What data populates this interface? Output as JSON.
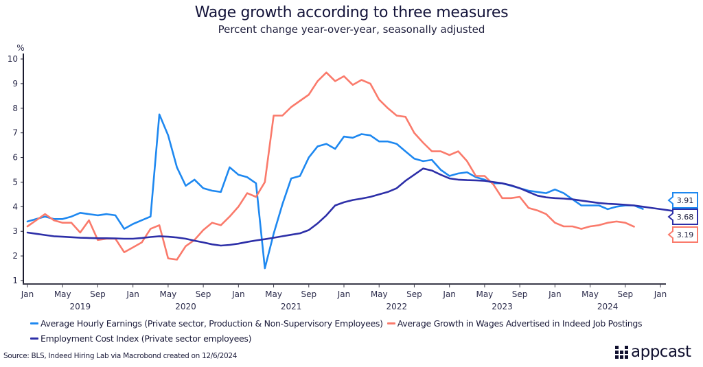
{
  "chart_data": {
    "type": "line",
    "title": "Wage growth according to three measures",
    "subtitle": "Percent change year-over-year, seasonally adjusted",
    "ylabel": "%",
    "xlabel": "",
    "ylim": [
      1,
      10
    ],
    "yticks": [
      1,
      2,
      3,
      4,
      5,
      6,
      7,
      8,
      9,
      10
    ],
    "x_start": "2019-01",
    "x_end": "2025-01",
    "xtick_months": [
      "Jan",
      "May",
      "Sep",
      "Jan",
      "May",
      "Sep",
      "Jan",
      "May",
      "Sep",
      "Jan",
      "May",
      "Sep",
      "Jan",
      "May",
      "Sep",
      "Jan",
      "May",
      "Sep",
      "Jan"
    ],
    "year_labels": [
      "2019",
      "2020",
      "2021",
      "2022",
      "2023",
      "2024"
    ],
    "grid": false,
    "legend_position": "bottom",
    "series": [
      {
        "name": "Average Hourly Earnings (Private sector, Production & Non-Supervisory Employees)",
        "color": "#1e88f0",
        "start": "2019-01",
        "values": [
          3.4,
          3.5,
          3.6,
          3.5,
          3.5,
          3.6,
          3.75,
          3.7,
          3.65,
          3.7,
          3.65,
          3.1,
          3.3,
          3.45,
          3.6,
          7.75,
          6.9,
          5.6,
          4.85,
          5.1,
          4.75,
          4.65,
          4.6,
          5.6,
          5.3,
          5.2,
          4.95,
          1.5,
          2.9,
          4.1,
          5.15,
          5.25,
          6.0,
          6.45,
          6.55,
          6.35,
          6.85,
          6.8,
          6.95,
          6.9,
          6.65,
          6.65,
          6.55,
          6.25,
          5.95,
          5.85,
          5.9,
          5.5,
          5.25,
          5.35,
          5.4,
          5.2,
          5.1,
          4.95,
          4.95,
          4.85,
          4.75,
          4.65,
          4.6,
          4.55,
          4.7,
          4.55,
          4.3,
          4.05,
          4.05,
          4.05,
          3.9,
          4.0,
          4.05,
          4.05,
          3.91
        ],
        "end_label": "3.91"
      },
      {
        "name": "Average Growth in Wages Advertised in Indeed Job Postings",
        "color": "#fa7a6b",
        "start": "2019-01",
        "values": [
          3.2,
          3.45,
          3.7,
          3.45,
          3.35,
          3.35,
          2.95,
          3.45,
          2.65,
          2.7,
          2.7,
          2.15,
          2.35,
          2.55,
          3.1,
          3.25,
          1.9,
          1.85,
          2.4,
          2.65,
          3.05,
          3.35,
          3.25,
          3.6,
          4.0,
          4.55,
          4.4,
          5.0,
          7.7,
          7.7,
          8.05,
          8.3,
          8.55,
          9.1,
          9.45,
          9.1,
          9.3,
          8.95,
          9.15,
          9.0,
          8.35,
          8.0,
          7.7,
          7.65,
          7.0,
          6.6,
          6.25,
          6.25,
          6.1,
          6.25,
          5.85,
          5.25,
          5.25,
          4.9,
          4.35,
          4.35,
          4.4,
          3.95,
          3.85,
          3.7,
          3.35,
          3.2,
          3.2,
          3.1,
          3.2,
          3.25,
          3.35,
          3.4,
          3.35,
          3.19
        ],
        "end_label": "3.19"
      },
      {
        "name": "Employment Cost Index (Private sector employees)",
        "color": "#2d2fa8",
        "start": "2019-01",
        "values": [
          2.95,
          2.9,
          2.85,
          2.8,
          2.78,
          2.76,
          2.74,
          2.73,
          2.72,
          2.72,
          2.71,
          2.7,
          2.7,
          2.73,
          2.77,
          2.8,
          2.78,
          2.75,
          2.7,
          2.62,
          2.55,
          2.47,
          2.42,
          2.45,
          2.5,
          2.57,
          2.63,
          2.68,
          2.74,
          2.8,
          2.86,
          2.92,
          3.05,
          3.32,
          3.65,
          4.05,
          4.18,
          4.27,
          4.33,
          4.4,
          4.5,
          4.6,
          4.75,
          5.05,
          5.3,
          5.55,
          5.47,
          5.3,
          5.15,
          5.1,
          5.08,
          5.07,
          5.05,
          5.0,
          4.95,
          4.87,
          4.75,
          4.6,
          4.45,
          4.38,
          4.35,
          4.33,
          4.3,
          4.25,
          4.2,
          4.15,
          4.12,
          4.1,
          4.08,
          4.05,
          4.0,
          3.95,
          3.9,
          3.85,
          3.8,
          3.74,
          3.68
        ],
        "start_override": "2018-12",
        "end_label": "3.68"
      }
    ]
  },
  "legend": {
    "items": [
      {
        "label": "Average Hourly Earnings (Private sector, Production & Non-Supervisory Employees)",
        "color": "#1e88f0"
      },
      {
        "label": "Average Growth in Wages Advertised in Indeed Job Postings",
        "color": "#fa7a6b"
      },
      {
        "label": "Employment Cost Index (Private sector employees)",
        "color": "#2d2fa8"
      }
    ]
  },
  "footer": {
    "source": "Source: BLS, Indeed Hiring Lab via Macrobond created on 12/6/2024",
    "logo_text": "appcast"
  }
}
